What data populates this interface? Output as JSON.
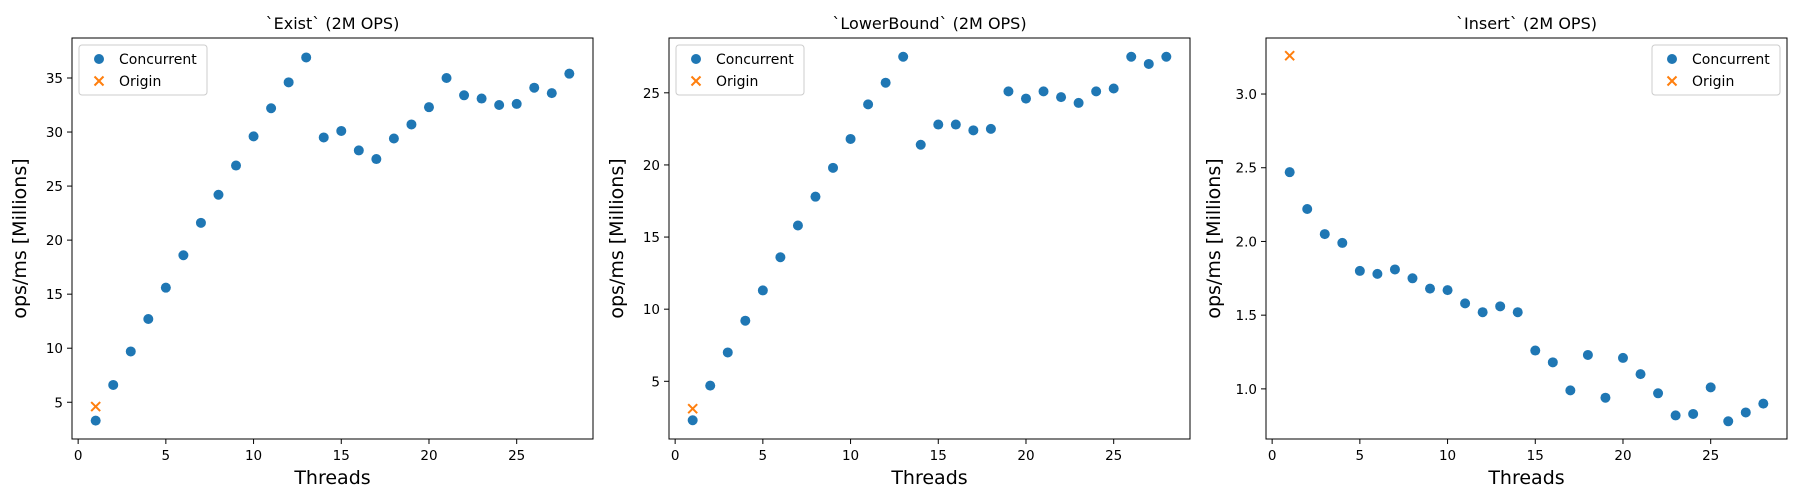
{
  "figure": {
    "colors": {
      "concurrent": "#1f77b4",
      "origin": "#ff7f0e"
    }
  },
  "chart_data": [
    {
      "type": "scatter",
      "title": "`Exist` (2M OPS)",
      "xlabel": "Threads",
      "ylabel": "ops/ms [Millions]",
      "xlim": [
        -0.35,
        29.35
      ],
      "ylim": [
        1.6,
        38.7
      ],
      "xticks": [
        0,
        5,
        10,
        15,
        20,
        25
      ],
      "yticks": [
        5,
        10,
        15,
        20,
        25,
        30,
        35
      ],
      "grid": false,
      "legend_position": "upper-left",
      "series": [
        {
          "name": "Concurrent",
          "marker": "circle",
          "x": [
            1,
            2,
            3,
            4,
            5,
            6,
            7,
            8,
            9,
            10,
            11,
            12,
            13,
            14,
            15,
            16,
            17,
            18,
            19,
            20,
            21,
            22,
            23,
            24,
            25,
            26,
            27,
            28
          ],
          "y": [
            3.3,
            6.6,
            9.7,
            12.7,
            15.6,
            18.6,
            21.6,
            24.2,
            26.9,
            29.6,
            32.2,
            34.6,
            36.9,
            29.5,
            30.1,
            28.3,
            27.5,
            29.4,
            30.7,
            32.3,
            35.0,
            33.4,
            33.1,
            32.5,
            32.6,
            34.1,
            33.6,
            35.4
          ]
        },
        {
          "name": "Origin",
          "marker": "x",
          "x": [
            1
          ],
          "y": [
            4.6
          ]
        }
      ]
    },
    {
      "type": "scatter",
      "title": "`LowerBound` (2M OPS)",
      "xlabel": "Threads",
      "ylabel": "ops/ms [Millions]",
      "xlim": [
        -0.35,
        29.35
      ],
      "ylim": [
        1.0,
        28.8
      ],
      "xticks": [
        0,
        5,
        10,
        15,
        20,
        25
      ],
      "yticks": [
        5,
        10,
        15,
        20,
        25
      ],
      "grid": false,
      "legend_position": "upper-left",
      "series": [
        {
          "name": "Concurrent",
          "marker": "circle",
          "x": [
            1,
            2,
            3,
            4,
            5,
            6,
            7,
            8,
            9,
            10,
            11,
            12,
            13,
            14,
            15,
            16,
            17,
            18,
            19,
            20,
            21,
            22,
            23,
            24,
            25,
            26,
            27,
            28
          ],
          "y": [
            2.3,
            4.7,
            7.0,
            9.2,
            11.3,
            13.6,
            15.8,
            17.8,
            19.8,
            21.8,
            24.2,
            25.7,
            27.5,
            21.4,
            22.8,
            22.8,
            22.4,
            22.5,
            25.1,
            24.6,
            25.1,
            24.7,
            24.3,
            25.1,
            25.3,
            27.5,
            27.0,
            27.5
          ]
        },
        {
          "name": "Origin",
          "marker": "x",
          "x": [
            1
          ],
          "y": [
            3.1
          ]
        }
      ]
    },
    {
      "type": "scatter",
      "title": "`Insert` (2M OPS)",
      "xlabel": "Threads",
      "ylabel": "ops/ms [Millions]",
      "xlim": [
        -0.35,
        29.35
      ],
      "ylim": [
        0.66,
        3.38
      ],
      "xticks": [
        0,
        5,
        10,
        15,
        20,
        25
      ],
      "yticks": [
        1.0,
        1.5,
        2.0,
        2.5,
        3.0
      ],
      "ytick_format": "fixed1",
      "grid": false,
      "legend_position": "upper-right",
      "series": [
        {
          "name": "Concurrent",
          "marker": "circle",
          "x": [
            1,
            2,
            3,
            4,
            5,
            6,
            7,
            8,
            9,
            10,
            11,
            12,
            13,
            14,
            15,
            16,
            17,
            18,
            19,
            20,
            21,
            22,
            23,
            24,
            25,
            26,
            27,
            28
          ],
          "y": [
            2.47,
            2.22,
            2.05,
            1.99,
            1.8,
            1.78,
            1.81,
            1.75,
            1.68,
            1.67,
            1.58,
            1.52,
            1.56,
            1.52,
            1.26,
            1.18,
            0.99,
            1.23,
            0.94,
            1.21,
            1.1,
            0.97,
            0.82,
            0.83,
            1.01,
            0.78,
            0.84,
            0.9
          ]
        },
        {
          "name": "Origin",
          "marker": "x",
          "x": [
            1
          ],
          "y": [
            3.26
          ]
        }
      ]
    }
  ]
}
